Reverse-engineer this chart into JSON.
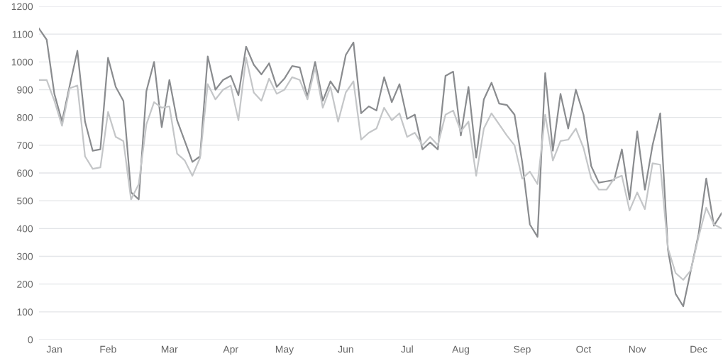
{
  "chart_data": {
    "type": "line",
    "categories": [
      null,
      null,
      "Jan",
      null,
      null,
      null,
      null,
      null,
      null,
      "Feb",
      null,
      null,
      null,
      null,
      null,
      null,
      null,
      "Mar",
      null,
      null,
      null,
      null,
      null,
      null,
      null,
      "Apr",
      null,
      null,
      null,
      null,
      null,
      null,
      "May",
      null,
      null,
      null,
      null,
      null,
      null,
      null,
      "Jun",
      null,
      null,
      null,
      null,
      null,
      null,
      null,
      "Jul",
      null,
      null,
      null,
      null,
      null,
      null,
      "Aug",
      null,
      null,
      null,
      null,
      null,
      null,
      null,
      "Sep",
      null,
      null,
      null,
      null,
      null,
      null,
      null,
      "Oct",
      null,
      null,
      null,
      null,
      null,
      null,
      "Nov",
      null,
      null,
      null,
      null,
      null,
      null,
      null,
      "Dec",
      null,
      null,
      null
    ],
    "series": [
      {
        "color": "#8a8c8f",
        "values": [
          1120,
          1080,
          885,
          785,
          915,
          1040,
          785,
          680,
          685,
          1015,
          910,
          860,
          530,
          505,
          895,
          1000,
          765,
          935,
          790,
          715,
          640,
          660,
          1020,
          900,
          935,
          950,
          880,
          1055,
          990,
          955,
          995,
          910,
          940,
          985,
          980,
          875,
          1000,
          860,
          930,
          890,
          1025,
          1070,
          815,
          840,
          825,
          945,
          855,
          920,
          795,
          810,
          685,
          710,
          685,
          950,
          965,
          735,
          910,
          655,
          865,
          925,
          850,
          845,
          810,
          640,
          415,
          370,
          960,
          680,
          885,
          760,
          900,
          810,
          625,
          565,
          570,
          575,
          685,
          505,
          750,
          540,
          700,
          815,
          325,
          165,
          120,
          250,
          380,
          580,
          410,
          455
        ]
      },
      {
        "color": "#c4c6c8",
        "values": [
          935,
          935,
          860,
          770,
          905,
          915,
          660,
          615,
          620,
          820,
          730,
          715,
          505,
          560,
          775,
          855,
          835,
          840,
          670,
          645,
          590,
          655,
          920,
          865,
          900,
          915,
          790,
          1015,
          890,
          860,
          940,
          885,
          900,
          945,
          935,
          865,
          980,
          835,
          910,
          785,
          890,
          930,
          720,
          745,
          760,
          835,
          790,
          815,
          730,
          745,
          700,
          730,
          700,
          810,
          825,
          750,
          785,
          590,
          760,
          815,
          775,
          735,
          700,
          580,
          605,
          560,
          810,
          645,
          715,
          720,
          760,
          690,
          580,
          540,
          540,
          580,
          590,
          465,
          530,
          470,
          635,
          630,
          330,
          240,
          215,
          250,
          370,
          475,
          415,
          400
        ]
      }
    ],
    "ylim": [
      0,
      1200
    ],
    "yticks": [
      0,
      100,
      200,
      300,
      400,
      500,
      600,
      700,
      800,
      900,
      1000,
      1100,
      1200
    ],
    "grid": "y",
    "legend": false,
    "marker": "none",
    "line_style": "solid"
  }
}
